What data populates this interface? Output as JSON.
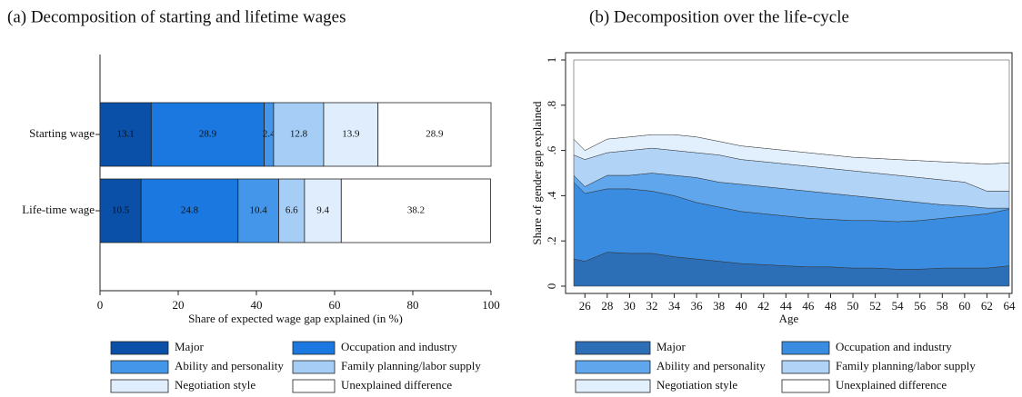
{
  "chart_data": [
    {
      "type": "hbar",
      "stacked": true,
      "title": "(a) Decomposition of starting and lifetime wages",
      "categories": [
        "Starting wage",
        "Life-time wage"
      ],
      "series": [
        {
          "name": "Major",
          "color": "#0a4fa8",
          "values": [
            13.1,
            10.5
          ]
        },
        {
          "name": "Occupation and industry",
          "color": "#1a78e0",
          "values": [
            28.9,
            24.8
          ]
        },
        {
          "name": "Ability and personality",
          "color": "#4396ea",
          "values": [
            2.4,
            10.4
          ]
        },
        {
          "name": "Family planning/labor supply",
          "color": "#a5cdf5",
          "values": [
            12.8,
            6.6
          ]
        },
        {
          "name": "Negotiation style",
          "color": "#dfedfc",
          "values": [
            13.9,
            9.4
          ]
        },
        {
          "name": "Unexplained difference",
          "color": "#ffffff",
          "values": [
            28.9,
            38.2
          ]
        }
      ],
      "xlim": [
        0,
        100
      ],
      "xticks": [
        0,
        20,
        40,
        60,
        80,
        100
      ],
      "xlabel": "Share of expected wage gap explained (in %)",
      "legend": "bottom"
    },
    {
      "type": "area",
      "stacked": true,
      "title": "(b) Decomposition over the life-cycle",
      "x": [
        25,
        26,
        28,
        30,
        32,
        34,
        36,
        38,
        40,
        42,
        44,
        46,
        48,
        50,
        52,
        54,
        56,
        58,
        60,
        62,
        64
      ],
      "series": [
        {
          "name": "Major",
          "color": "#2d6fb6",
          "values": [
            0.12,
            0.11,
            0.15,
            0.145,
            0.145,
            0.13,
            0.12,
            0.11,
            0.1,
            0.095,
            0.09,
            0.085,
            0.085,
            0.08,
            0.08,
            0.075,
            0.075,
            0.08,
            0.08,
            0.08,
            0.09
          ]
        },
        {
          "name": "Occupation and industry",
          "color": "#3a8ce0",
          "values": [
            0.34,
            0.3,
            0.28,
            0.285,
            0.275,
            0.27,
            0.25,
            0.24,
            0.23,
            0.225,
            0.22,
            0.215,
            0.21,
            0.21,
            0.21,
            0.21,
            0.215,
            0.22,
            0.23,
            0.24,
            0.25
          ]
        },
        {
          "name": "Ability and personality",
          "color": "#5fa6ec",
          "values": [
            0.03,
            0.03,
            0.06,
            0.06,
            0.08,
            0.09,
            0.11,
            0.11,
            0.12,
            0.12,
            0.12,
            0.12,
            0.115,
            0.11,
            0.1,
            0.095,
            0.08,
            0.06,
            0.045,
            0.025,
            0.005
          ]
        },
        {
          "name": "Family planning/labor supply",
          "color": "#b0d3f6",
          "values": [
            0.09,
            0.12,
            0.1,
            0.11,
            0.11,
            0.11,
            0.11,
            0.12,
            0.11,
            0.11,
            0.11,
            0.11,
            0.11,
            0.11,
            0.11,
            0.11,
            0.11,
            0.11,
            0.105,
            0.075,
            0.075
          ]
        },
        {
          "name": "Negotiation style",
          "color": "#e2effc",
          "values": [
            0.07,
            0.04,
            0.06,
            0.06,
            0.06,
            0.07,
            0.07,
            0.06,
            0.06,
            0.06,
            0.06,
            0.06,
            0.06,
            0.06,
            0.065,
            0.07,
            0.075,
            0.08,
            0.085,
            0.12,
            0.125
          ]
        },
        {
          "name": "Unexplained difference",
          "color": "#ffffff",
          "values": [
            0.35,
            0.4,
            0.35,
            0.34,
            0.33,
            0.33,
            0.34,
            0.36,
            0.38,
            0.39,
            0.4,
            0.41,
            0.42,
            0.43,
            0.435,
            0.44,
            0.445,
            0.45,
            0.455,
            0.46,
            0.455
          ]
        }
      ],
      "xlim": [
        25,
        64
      ],
      "xticks": [
        26,
        28,
        30,
        32,
        34,
        36,
        38,
        40,
        42,
        44,
        46,
        48,
        50,
        52,
        54,
        56,
        58,
        60,
        62,
        64
      ],
      "ylim": [
        0,
        1
      ],
      "yticks": [
        0,
        {
          "value": 0.2,
          "label": ".2"
        },
        {
          "value": 0.4,
          "label": ".4"
        },
        {
          "value": 0.6,
          "label": ".6"
        },
        {
          "value": 0.8,
          "label": ".8"
        },
        1
      ],
      "xlabel": "Age",
      "ylabel": "Share of gender gap explained",
      "legend": "bottom"
    }
  ]
}
